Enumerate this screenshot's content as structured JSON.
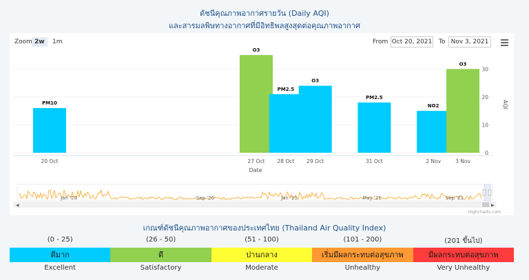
{
  "title_line1": "ดัชนีคุณภาพอากาศรายวัน (Daily AQI)",
  "title_line2": "และสารมลพิษทางอากาศที่มีอิทธิพลสูงสุดต่อคุณภาพอากาศ",
  "toolbar": {
    "zoom_label": "Zoom",
    "zoom_options": [
      "2w",
      "1m"
    ],
    "from_label": "From",
    "from_value": "Oct 20, 2021",
    "to_label": "To",
    "to_value": "Nov 3, 2021"
  },
  "chart_data": {
    "type": "bar",
    "x": [
      "2021-10-20",
      "2021-10-27",
      "2021-10-28",
      "2021-10-29",
      "2021-10-31",
      "2021-11-02",
      "2021-11-03"
    ],
    "x_tick_labels": [
      "20 Oct",
      "27 Oct",
      "28 Oct",
      "29 Oct",
      "31 Oct",
      "2 Nov",
      "3 Nov"
    ],
    "values": [
      16,
      35,
      21,
      24,
      18,
      15,
      30
    ],
    "data_labels": [
      "PM10",
      "O3",
      "PM2.5",
      "O3",
      "PM2.5",
      "NO2",
      "O3"
    ],
    "colors": [
      "#00ccff",
      "#92d050",
      "#00ccff",
      "#00ccff",
      "#00ccff",
      "#00ccff",
      "#92d050"
    ],
    "xlabel": "Date",
    "ylabel": "AQI",
    "ylim": [
      0,
      36
    ],
    "yticks": [
      0,
      10,
      20,
      30
    ],
    "navigator_labels": [
      "Jan '20",
      "Sep '20",
      "Jan '21",
      "May '21",
      "Sep '21"
    ],
    "credits": "Highcharts.com"
  },
  "legend": {
    "title": "เกณฑ์ดัชนีคุณภาพอากาศของประเทศไทย (Thailand Air Quality Index)",
    "levels": [
      {
        "range": "(0 - 25)",
        "thai": "ดีมาก",
        "english": "Excellent",
        "color": "#00ccff"
      },
      {
        "range": "(26 - 50)",
        "thai": "ดี",
        "english": "Satisfactory",
        "color": "#92d050"
      },
      {
        "range": "(51 - 100)",
        "thai": "ปานกลาง",
        "english": "Moderate",
        "color": "#ffff33"
      },
      {
        "range": "(101 - 200)",
        "thai": "เริ่มมีผลกระทบต่อสุขภาพ",
        "english": "Unhealthy",
        "color": "#ff9933"
      },
      {
        "range": "(201 ขึ้นไป)",
        "thai": "มีผลกระทบต่อสุขภาพ",
        "english": "Very Unhealthy",
        "color": "#ff3b3b"
      }
    ]
  }
}
